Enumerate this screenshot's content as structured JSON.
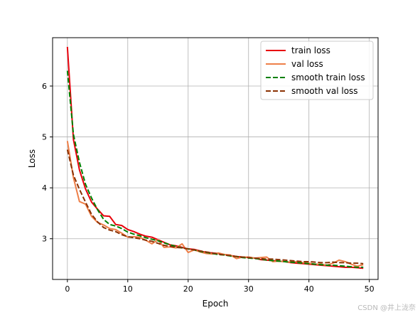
{
  "chart_data": {
    "type": "line",
    "xlabel": "Epoch",
    "ylabel": "Loss",
    "xlim": [
      -2.45,
      51.45
    ],
    "ylim": [
      2.2,
      6.95
    ],
    "xticks": [
      0,
      10,
      20,
      30,
      40,
      50
    ],
    "yticks": [
      3,
      4,
      5,
      6
    ],
    "grid": true,
    "legend_position": "top-right",
    "x": [
      0,
      1,
      2,
      3,
      4,
      5,
      6,
      7,
      8,
      9,
      10,
      11,
      12,
      13,
      14,
      15,
      16,
      17,
      18,
      19,
      20,
      21,
      22,
      23,
      24,
      25,
      26,
      27,
      28,
      29,
      30,
      31,
      32,
      33,
      34,
      35,
      36,
      37,
      38,
      39,
      40,
      41,
      42,
      43,
      44,
      45,
      46,
      47,
      48,
      49
    ],
    "series": [
      {
        "name": "train loss",
        "color": "#e8000b",
        "dash": "solid",
        "values": [
          6.77,
          4.95,
          4.35,
          3.98,
          3.72,
          3.58,
          3.45,
          3.44,
          3.28,
          3.26,
          3.18,
          3.14,
          3.09,
          3.05,
          3.03,
          2.98,
          2.93,
          2.88,
          2.86,
          2.83,
          2.8,
          2.79,
          2.76,
          2.73,
          2.72,
          2.71,
          2.69,
          2.67,
          2.65,
          2.64,
          2.63,
          2.62,
          2.59,
          2.58,
          2.57,
          2.56,
          2.55,
          2.53,
          2.52,
          2.51,
          2.5,
          2.49,
          2.48,
          2.47,
          2.46,
          2.45,
          2.44,
          2.44,
          2.43,
          2.42
        ]
      },
      {
        "name": "val loss",
        "color": "#ee7f48",
        "dash": "solid",
        "values": [
          4.92,
          4.2,
          3.73,
          3.68,
          3.44,
          3.32,
          3.27,
          3.2,
          3.18,
          3.11,
          3.03,
          3.04,
          3.03,
          2.97,
          2.9,
          2.98,
          2.83,
          2.84,
          2.82,
          2.9,
          2.73,
          2.78,
          2.74,
          2.71,
          2.7,
          2.72,
          2.69,
          2.68,
          2.61,
          2.64,
          2.64,
          2.62,
          2.63,
          2.64,
          2.55,
          2.56,
          2.55,
          2.54,
          2.55,
          2.53,
          2.52,
          2.5,
          2.5,
          2.48,
          2.52,
          2.58,
          2.55,
          2.5,
          2.46,
          2.49
        ]
      },
      {
        "name": "smooth train loss",
        "color": "#008000",
        "dash": "dashed",
        "values": [
          6.3,
          5.05,
          4.5,
          4.07,
          3.8,
          3.57,
          3.38,
          3.28,
          3.25,
          3.2,
          3.13,
          3.09,
          3.06,
          3.02,
          2.99,
          2.96,
          2.92,
          2.88,
          2.85,
          2.82,
          2.8,
          2.78,
          2.75,
          2.73,
          2.71,
          2.69,
          2.68,
          2.66,
          2.65,
          2.63,
          2.62,
          2.61,
          2.6,
          2.58,
          2.57,
          2.56,
          2.55,
          2.54,
          2.53,
          2.52,
          2.51,
          2.5,
          2.49,
          2.48,
          2.48,
          2.47,
          2.46,
          2.45,
          2.44,
          2.44
        ]
      },
      {
        "name": "smooth val loss",
        "color": "#8b3103",
        "dash": "dashed",
        "values": [
          4.75,
          4.25,
          3.97,
          3.72,
          3.48,
          3.33,
          3.22,
          3.17,
          3.14,
          3.08,
          3.04,
          3.02,
          3.0,
          2.97,
          2.95,
          2.91,
          2.87,
          2.85,
          2.83,
          2.82,
          2.8,
          2.78,
          2.76,
          2.74,
          2.72,
          2.7,
          2.68,
          2.67,
          2.65,
          2.64,
          2.63,
          2.62,
          2.61,
          2.6,
          2.6,
          2.59,
          2.58,
          2.57,
          2.56,
          2.55,
          2.55,
          2.54,
          2.53,
          2.53,
          2.54,
          2.53,
          2.53,
          2.52,
          2.52,
          2.51
        ]
      }
    ]
  },
  "watermark": "CSDN @井上泷奈"
}
